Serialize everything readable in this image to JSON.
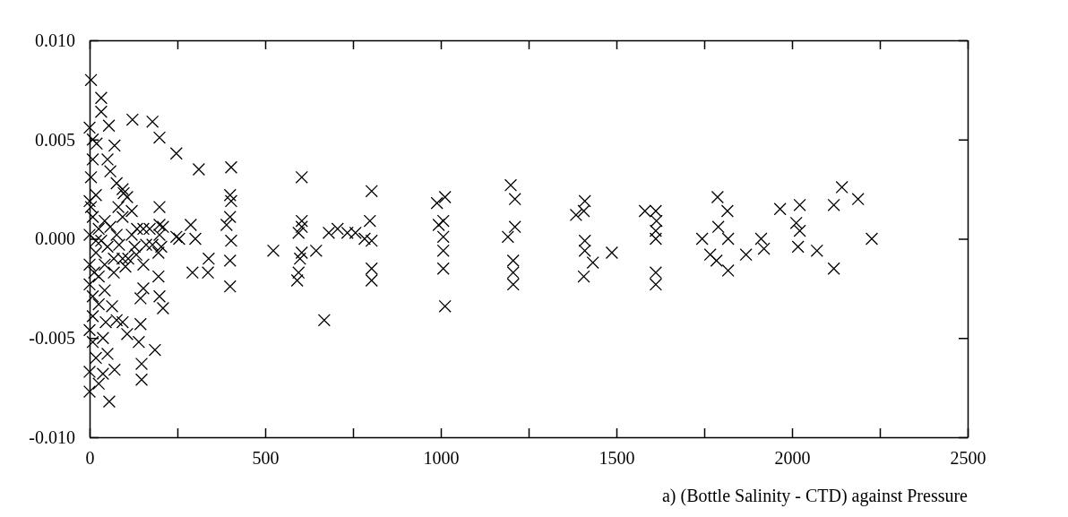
{
  "chart_data": {
    "type": "scatter",
    "marker": "cross",
    "grid": false,
    "annotations": [
      "a) (Bottle Salinity - CTD) against Pressure"
    ],
    "xlim": [
      0,
      2500
    ],
    "xticks": [
      0,
      {
        "value": 250,
        "label": null
      },
      500,
      {
        "value": 750,
        "label": null
      },
      1000,
      {
        "value": 1250,
        "label": null
      },
      1500,
      {
        "value": 1750,
        "label": null
      },
      2000,
      {
        "value": 2250,
        "label": null
      },
      2500
    ],
    "ylim": [
      -0.01,
      0.01
    ],
    "yticks": [
      {
        "value": -0.01,
        "label": "-0.010"
      },
      {
        "value": -0.005,
        "label": "-0.005"
      },
      {
        "value": 0,
        "label": "0.000"
      },
      {
        "value": 0.005,
        "label": "0.005"
      },
      {
        "value": 0.01,
        "label": "0.010"
      }
    ],
    "series": [
      {
        "color": "#000000",
        "x": [
          2142,
          2188,
          2119,
          2227,
          2119,
          2071,
          2017,
          2022,
          2012,
          2022,
          1966,
          1920,
          1912,
          1869,
          1818,
          1785,
          1767,
          1818,
          1790,
          1816,
          1788,
          1744,
          1612,
          1612,
          1612,
          1612,
          1614,
          1612,
          1581,
          1487,
          604,
          523,
          591,
          595,
          599,
          604,
          595,
          604,
          604,
          645,
          668,
          681,
          706,
          734,
          757,
          783,
          798,
          803,
          803,
          803,
          803,
          989,
          1012,
          994,
          1007,
          1007,
          1007,
          1007,
          1012,
          1199,
          1211,
          1191,
          1211,
          1206,
          1206,
          1206,
          1410,
          1385,
          1407,
          1410,
          1410,
          1433,
          1407,
          4,
          33,
          33,
          55,
          0,
          9,
          20,
          71,
          9,
          51,
          4,
          59,
          77,
          97,
          122,
          179,
          199,
          247,
          311,
          403,
          400,
          403,
          400,
          390,
          403,
          400,
          400,
          288,
          301,
          255,
          247,
          293,
          337,
          339,
          199,
          199,
          199,
          196,
          196,
          199,
          209,
          186,
          148,
          148,
          145,
          140,
          145,
          153,
          77,
          94,
          107,
          56,
          0,
          26,
          0,
          38,
          71,
          51,
          18,
          9,
          38,
          0,
          46,
          9,
          26,
          64,
          9,
          43,
          0,
          26,
          69,
          102,
          94,
          133,
          153,
          0,
          18,
          51,
          84,
          120,
          153,
          0,
          26,
          59,
          94,
          120,
          9,
          43,
          4,
          18,
          0,
          82,
          107,
          94,
          171,
          179,
          161,
          128,
          135,
          69,
          43,
          13,
          33,
          18,
          77,
          110,
          204,
          209
        ],
        "values": [
          0.0026,
          0.002,
          0.0017,
          0.0,
          -0.0015,
          -0.0006,
          -0.0004,
          0.0004,
          0.0008,
          0.0017,
          0.0015,
          -0.0005,
          0.0,
          -0.0008,
          -0.0016,
          -0.0011,
          -0.0008,
          0.0,
          0.0006,
          0.0014,
          0.0021,
          0.0,
          -0.0023,
          -0.0017,
          0.0,
          0.0004,
          0.0009,
          0.0014,
          0.0014,
          -0.0007,
          0.0031,
          -0.0006,
          -0.0021,
          -0.0017,
          -0.001,
          -0.0007,
          0.0003,
          0.0006,
          0.0009,
          -0.0006,
          -0.0041,
          0.0003,
          0.0005,
          0.0003,
          0.0003,
          0.0,
          0.0009,
          0.0024,
          -0.0001,
          -0.0015,
          -0.0021,
          0.0018,
          0.0021,
          0.0007,
          0.0009,
          0.0001,
          -0.0006,
          -0.0015,
          -0.0034,
          0.0027,
          0.002,
          0.0001,
          0.0006,
          -0.0011,
          -0.0017,
          -0.0023,
          0.0019,
          0.0012,
          0.0014,
          -0.0001,
          -0.0006,
          -0.0012,
          -0.0019,
          0.008,
          0.0071,
          0.0064,
          0.0057,
          0.0056,
          0.005,
          0.0048,
          0.0047,
          0.004,
          0.004,
          0.0031,
          0.0034,
          0.0028,
          0.0023,
          0.006,
          0.0059,
          0.0051,
          0.0043,
          0.0035,
          0.0036,
          0.0022,
          0.0019,
          0.0011,
          0.0007,
          -0.0001,
          -0.0011,
          -0.0024,
          0.0007,
          0.0,
          0.0,
          0.0001,
          -0.0017,
          -0.0017,
          -0.001,
          0.0016,
          0.0007,
          0.0002,
          -0.0007,
          -0.0019,
          -0.0029,
          -0.0035,
          -0.0056,
          -0.0063,
          -0.0071,
          -0.0043,
          -0.0052,
          -0.003,
          -0.0025,
          -0.0041,
          -0.0042,
          -0.0048,
          -0.0082,
          -0.0077,
          -0.0073,
          -0.0067,
          -0.0068,
          -0.0066,
          -0.0058,
          -0.006,
          -0.0052,
          -0.005,
          -0.0046,
          -0.0042,
          -0.0039,
          -0.0033,
          -0.0034,
          -0.0029,
          -0.0026,
          -0.0023,
          -0.0019,
          -0.0017,
          -0.0014,
          -0.001,
          -0.0008,
          -0.0013,
          -0.0013,
          -0.0007,
          -0.0004,
          -0.0003,
          0.0002,
          0.0005,
          0.0002,
          0.0005,
          0.0006,
          0.0011,
          0.0014,
          0.0011,
          0.0009,
          0.0016,
          0.0022,
          0.0019,
          0.0016,
          0.0021,
          0.0025,
          0.0005,
          -0.0003,
          -0.0003,
          -0.0004,
          0.0005,
          -0.001,
          -0.0013,
          -0.0017,
          -0.0001,
          -0.0001,
          0.0002,
          -0.001,
          -0.0004,
          0.0006
        ]
      }
    ]
  }
}
